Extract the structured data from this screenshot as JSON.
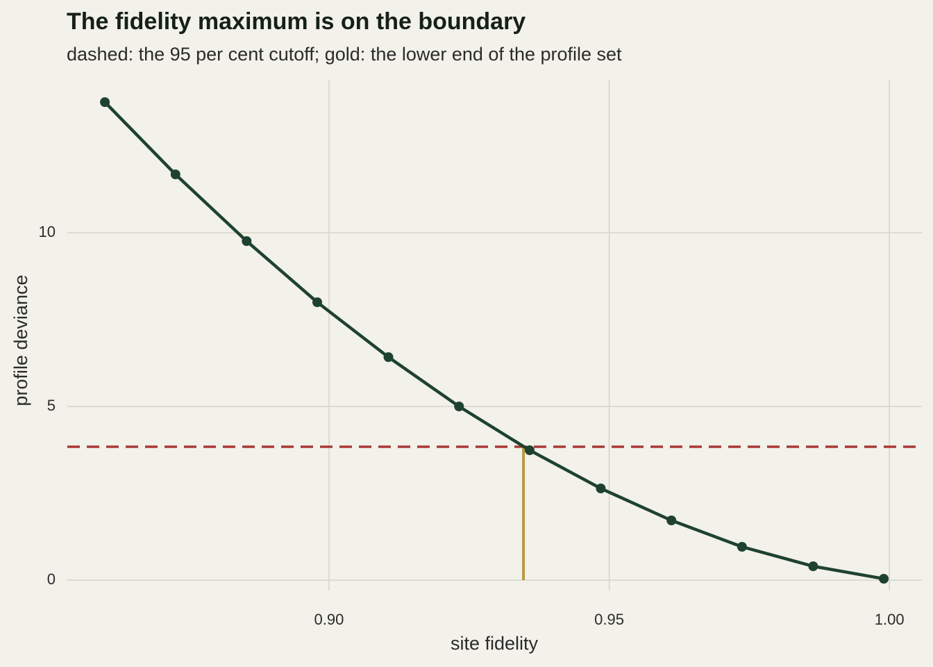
{
  "chart_data": {
    "type": "line",
    "title": "The fidelity maximum is on the boundary",
    "subtitle": "dashed: the 95 per cent cutoff; gold: the lower end of the profile set",
    "x_label": "site fidelity",
    "y_label": "profile deviance",
    "x": [
      0.86,
      0.8726,
      0.8853,
      0.8979,
      0.9106,
      0.9232,
      0.9358,
      0.9485,
      0.9611,
      0.9737,
      0.9864,
      0.999
    ],
    "series": [
      {
        "color": "#1f4230",
        "values": [
          13.76,
          11.68,
          9.76,
          8.0,
          6.42,
          5.0,
          3.74,
          2.64,
          1.72,
          0.96,
          0.4,
          0.04
        ]
      }
    ],
    "cutoff": {
      "value": 3.84,
      "color": "#a83a36"
    },
    "lower_end": {
      "value": 0.9347,
      "color": "#b89a3e"
    },
    "xlim": [
      0.8533,
      1.0058
    ],
    "ylim": [
      -0.3,
      14.4
    ],
    "xticks": [
      {
        "value": 0.9,
        "label": "0.90"
      },
      {
        "value": 0.95,
        "label": "0.95"
      },
      {
        "value": 1.0,
        "label": "1.00"
      }
    ],
    "yticks": [
      0,
      5,
      10
    ],
    "grid": true
  }
}
